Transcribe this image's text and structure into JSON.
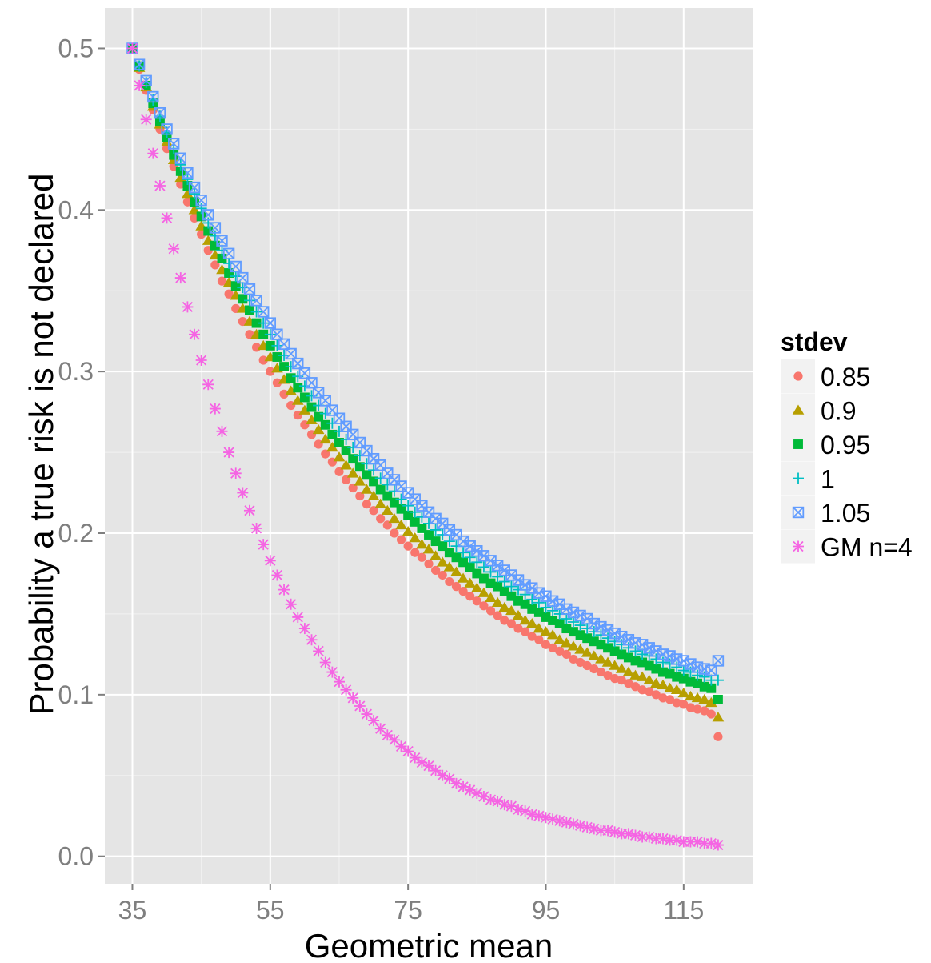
{
  "chart_data": {
    "type": "scatter",
    "title": "",
    "xlabel": "Geometric mean",
    "ylabel": "Probability a true risk is not declared",
    "xlim": [
      31,
      125
    ],
    "ylim": [
      -0.017,
      0.525
    ],
    "xticks": [
      35,
      55,
      75,
      95,
      115
    ],
    "xtick_labels": [
      "35",
      "55",
      "75",
      "95",
      "115"
    ],
    "yticks": [
      0.0,
      0.1,
      0.2,
      0.3,
      0.4,
      0.5
    ],
    "ytick_labels": [
      "0.0",
      "0.1",
      "0.2",
      "0.3",
      "0.4",
      "0.5"
    ],
    "grid": true,
    "legend_position": "right",
    "legend_title": "stdev",
    "x": [
      35,
      36,
      37,
      38,
      39,
      40,
      41,
      42,
      43,
      44,
      45,
      46,
      47,
      48,
      49,
      50,
      51,
      52,
      53,
      54,
      55,
      56,
      57,
      58,
      59,
      60,
      61,
      62,
      63,
      64,
      65,
      66,
      67,
      68,
      69,
      70,
      71,
      72,
      73,
      74,
      75,
      76,
      77,
      78,
      79,
      80,
      81,
      82,
      83,
      84,
      85,
      86,
      87,
      88,
      89,
      90,
      91,
      92,
      93,
      94,
      95,
      96,
      97,
      98,
      99,
      100,
      101,
      102,
      103,
      104,
      105,
      106,
      107,
      108,
      109,
      110,
      111,
      112,
      113,
      114,
      115,
      116,
      117,
      118,
      119,
      120
    ],
    "series": [
      {
        "name": "0.85",
        "marker": "circle",
        "color": "#F8766D",
        "values": [
          0.5,
          0.487,
          0.474,
          0.462,
          0.45,
          0.438,
          0.427,
          0.416,
          0.405,
          0.395,
          0.385,
          0.375,
          0.366,
          0.356,
          0.348,
          0.339,
          0.331,
          0.323,
          0.315,
          0.307,
          0.3,
          0.293,
          0.286,
          0.279,
          0.273,
          0.267,
          0.261,
          0.255,
          0.249,
          0.244,
          0.238,
          0.233,
          0.228,
          0.223,
          0.218,
          0.214,
          0.209,
          0.205,
          0.2,
          0.196,
          0.192,
          0.188,
          0.185,
          0.181,
          0.177,
          0.174,
          0.17,
          0.167,
          0.164,
          0.161,
          0.158,
          0.155,
          0.152,
          0.149,
          0.146,
          0.144,
          0.141,
          0.139,
          0.136,
          0.134,
          0.131,
          0.129,
          0.127,
          0.125,
          0.122,
          0.12,
          0.118,
          0.116,
          0.114,
          0.112,
          0.11,
          0.109,
          0.107,
          0.105,
          0.103,
          0.102,
          0.1,
          0.098,
          0.097,
          0.095,
          0.094,
          0.092,
          0.091,
          0.09,
          0.088,
          0.074
        ]
      },
      {
        "name": "0.9",
        "marker": "triangle",
        "color": "#B79F00",
        "values": [
          0.5,
          0.488,
          0.476,
          0.464,
          0.453,
          0.442,
          0.431,
          0.42,
          0.41,
          0.4,
          0.39,
          0.381,
          0.372,
          0.363,
          0.355,
          0.347,
          0.339,
          0.331,
          0.323,
          0.316,
          0.309,
          0.302,
          0.295,
          0.288,
          0.282,
          0.276,
          0.27,
          0.264,
          0.258,
          0.253,
          0.247,
          0.242,
          0.237,
          0.232,
          0.227,
          0.223,
          0.218,
          0.214,
          0.209,
          0.205,
          0.201,
          0.197,
          0.193,
          0.19,
          0.186,
          0.182,
          0.179,
          0.176,
          0.172,
          0.169,
          0.166,
          0.163,
          0.16,
          0.157,
          0.154,
          0.152,
          0.149,
          0.146,
          0.144,
          0.141,
          0.139,
          0.137,
          0.134,
          0.132,
          0.13,
          0.128,
          0.126,
          0.124,
          0.122,
          0.12,
          0.118,
          0.116,
          0.114,
          0.112,
          0.111,
          0.109,
          0.107,
          0.106,
          0.104,
          0.103,
          0.101,
          0.099,
          0.098,
          0.097,
          0.095,
          0.086
        ]
      },
      {
        "name": "0.95",
        "marker": "square",
        "color": "#00BA38",
        "values": [
          0.5,
          0.489,
          0.477,
          0.466,
          0.455,
          0.445,
          0.434,
          0.424,
          0.415,
          0.405,
          0.396,
          0.387,
          0.378,
          0.37,
          0.361,
          0.353,
          0.345,
          0.338,
          0.33,
          0.323,
          0.316,
          0.309,
          0.303,
          0.296,
          0.29,
          0.284,
          0.278,
          0.272,
          0.267,
          0.261,
          0.256,
          0.251,
          0.246,
          0.241,
          0.236,
          0.232,
          0.227,
          0.223,
          0.219,
          0.215,
          0.211,
          0.207,
          0.203,
          0.199,
          0.195,
          0.192,
          0.188,
          0.185,
          0.182,
          0.179,
          0.175,
          0.172,
          0.169,
          0.167,
          0.164,
          0.161,
          0.158,
          0.156,
          0.153,
          0.151,
          0.148,
          0.146,
          0.144,
          0.141,
          0.139,
          0.137,
          0.135,
          0.133,
          0.131,
          0.129,
          0.127,
          0.125,
          0.123,
          0.121,
          0.12,
          0.118,
          0.116,
          0.114,
          0.113,
          0.111,
          0.11,
          0.108,
          0.107,
          0.105,
          0.104,
          0.097
        ]
      },
      {
        "name": "1",
        "marker": "plus",
        "color": "#00BFC4",
        "values": [
          0.5,
          0.489,
          0.479,
          0.468,
          0.458,
          0.448,
          0.438,
          0.428,
          0.419,
          0.41,
          0.401,
          0.392,
          0.384,
          0.375,
          0.367,
          0.359,
          0.352,
          0.344,
          0.337,
          0.33,
          0.323,
          0.316,
          0.31,
          0.303,
          0.297,
          0.291,
          0.285,
          0.279,
          0.274,
          0.268,
          0.263,
          0.258,
          0.253,
          0.248,
          0.243,
          0.239,
          0.234,
          0.23,
          0.226,
          0.221,
          0.217,
          0.213,
          0.21,
          0.206,
          0.202,
          0.199,
          0.195,
          0.192,
          0.188,
          0.185,
          0.182,
          0.179,
          0.176,
          0.173,
          0.17,
          0.167,
          0.165,
          0.162,
          0.159,
          0.157,
          0.154,
          0.152,
          0.15,
          0.147,
          0.145,
          0.143,
          0.141,
          0.139,
          0.137,
          0.135,
          0.133,
          0.131,
          0.129,
          0.127,
          0.125,
          0.124,
          0.122,
          0.12,
          0.119,
          0.117,
          0.115,
          0.114,
          0.112,
          0.111,
          0.109,
          0.109
        ]
      },
      {
        "name": "1.05",
        "marker": "boxx",
        "color": "#619CFF",
        "values": [
          0.5,
          0.49,
          0.48,
          0.47,
          0.46,
          0.45,
          0.441,
          0.432,
          0.423,
          0.414,
          0.406,
          0.397,
          0.389,
          0.381,
          0.373,
          0.365,
          0.358,
          0.351,
          0.344,
          0.337,
          0.33,
          0.323,
          0.317,
          0.311,
          0.305,
          0.299,
          0.293,
          0.287,
          0.282,
          0.276,
          0.271,
          0.266,
          0.261,
          0.256,
          0.251,
          0.246,
          0.242,
          0.237,
          0.233,
          0.229,
          0.225,
          0.221,
          0.217,
          0.213,
          0.209,
          0.206,
          0.202,
          0.199,
          0.195,
          0.192,
          0.189,
          0.186,
          0.183,
          0.18,
          0.177,
          0.174,
          0.171,
          0.168,
          0.166,
          0.163,
          0.161,
          0.158,
          0.156,
          0.153,
          0.151,
          0.149,
          0.147,
          0.144,
          0.142,
          0.14,
          0.138,
          0.136,
          0.134,
          0.132,
          0.131,
          0.129,
          0.127,
          0.125,
          0.124,
          0.122,
          0.121,
          0.119,
          0.117,
          0.116,
          0.115,
          0.121
        ]
      },
      {
        "name": "GM n=4",
        "marker": "asterisk",
        "color": "#F564E3",
        "values": [
          0.5,
          0.477,
          0.456,
          0.435,
          0.415,
          0.395,
          0.376,
          0.358,
          0.34,
          0.323,
          0.307,
          0.292,
          0.277,
          0.263,
          0.25,
          0.237,
          0.225,
          0.214,
          0.203,
          0.193,
          0.183,
          0.174,
          0.165,
          0.156,
          0.148,
          0.141,
          0.134,
          0.127,
          0.12,
          0.114,
          0.108,
          0.103,
          0.098,
          0.093,
          0.088,
          0.084,
          0.079,
          0.075,
          0.072,
          0.068,
          0.065,
          0.061,
          0.058,
          0.056,
          0.053,
          0.05,
          0.048,
          0.045,
          0.043,
          0.041,
          0.039,
          0.037,
          0.035,
          0.034,
          0.032,
          0.031,
          0.029,
          0.028,
          0.026,
          0.025,
          0.024,
          0.023,
          0.022,
          0.021,
          0.02,
          0.019,
          0.018,
          0.017,
          0.016,
          0.016,
          0.015,
          0.014,
          0.014,
          0.013,
          0.012,
          0.012,
          0.011,
          0.011,
          0.01,
          0.01,
          0.009,
          0.009,
          0.009,
          0.008,
          0.008,
          0.007
        ]
      }
    ]
  }
}
